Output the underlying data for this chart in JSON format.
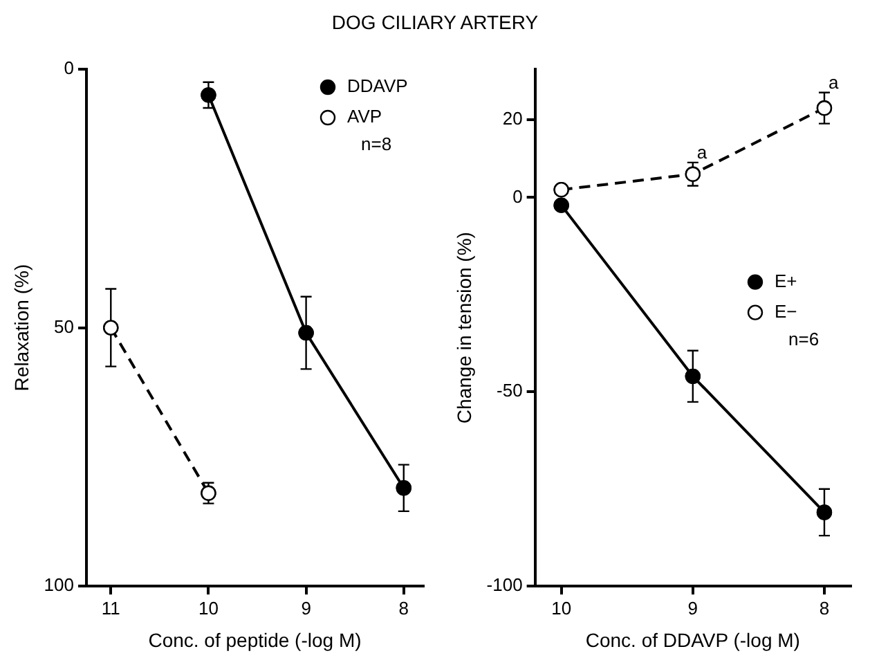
{
  "chart_data": [
    {
      "type": "line",
      "title": "DOG CILIARY ARTERY",
      "xlabel": "Conc. of peptide (-log M)",
      "ylabel": "Relaxation (%)",
      "xlim": [
        11.25,
        7.8
      ],
      "xticks": [
        11,
        10,
        9,
        8
      ],
      "ylim": [
        100,
        0
      ],
      "yticks": [
        0,
        50,
        100
      ],
      "series": [
        {
          "name": "DDAVP",
          "color": "#000000",
          "x": [
            10,
            9,
            8
          ],
          "values": [
            5,
            51,
            81
          ],
          "errors": [
            2.5,
            7,
            4.5
          ],
          "line_style": "solid"
        },
        {
          "name": "AVP",
          "color": "#000000",
          "x": [
            11,
            10
          ],
          "values": [
            50,
            82
          ],
          "errors": [
            7.5,
            2
          ],
          "line_style": "dashed"
        }
      ],
      "marker": "circle",
      "grid": false,
      "legend": "top right",
      "annotations": [
        "n=8"
      ]
    },
    {
      "type": "line",
      "xlabel": "Conc. of DDAVP (-log M)",
      "ylabel": "Change in tension (%)",
      "xlim": [
        10.2,
        7.8
      ],
      "xticks": [
        10,
        9,
        8
      ],
      "ylim": [
        -100,
        33
      ],
      "yticks": [
        20,
        0,
        -50,
        -100
      ],
      "series": [
        {
          "name": "E+",
          "color": "#000000",
          "x": [
            10,
            9,
            8
          ],
          "values": [
            -2,
            -46,
            -81
          ],
          "errors": [
            null,
            6.6,
            6
          ],
          "line_style": "solid"
        },
        {
          "name": "E−",
          "color": "#000000",
          "x": [
            10,
            9,
            8
          ],
          "values": [
            2,
            6,
            23
          ],
          "errors": [
            null,
            3,
            4
          ],
          "line_style": "dashed"
        }
      ],
      "marker": "circle",
      "grid": false,
      "legend": "right",
      "annotations": [
        "n=6",
        {
          "text": "a",
          "x": 9,
          "y": 9
        },
        {
          "text": "a",
          "x": 8,
          "y": 27
        }
      ]
    }
  ]
}
